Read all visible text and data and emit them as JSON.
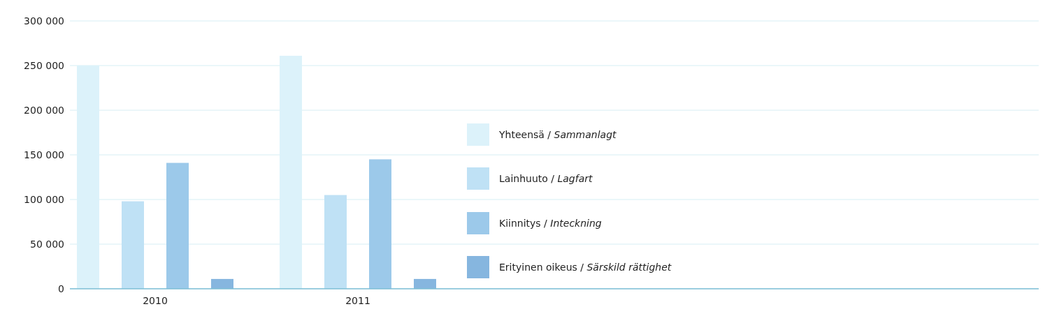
{
  "chart_data": {
    "type": "bar",
    "categories": [
      "2010",
      "2011"
    ],
    "series": [
      {
        "name": "Yhteensä / Sammanlagt",
        "color": "#dcf2fa",
        "values": [
          250000,
          261000
        ]
      },
      {
        "name": "Lainhuuto / Lagfart",
        "color": "#bfe1f5",
        "values": [
          98000,
          105000
        ]
      },
      {
        "name": "Kiinnitys / Inteckning",
        "color": "#9cc9ea",
        "values": [
          141000,
          145000
        ]
      },
      {
        "name": "Erityinen oikeus / Särskild rättighet",
        "color": "#86b6df",
        "values": [
          11000,
          11000
        ]
      }
    ],
    "ylim": [
      0,
      300000
    ],
    "yticks": [
      {
        "value": 0,
        "label": "0"
      },
      {
        "value": 50000,
        "label": "50 000"
      },
      {
        "value": 100000,
        "label": "100 000"
      },
      {
        "value": 150000,
        "label": "150 000"
      },
      {
        "value": 200000,
        "label": "200 000"
      },
      {
        "value": 250000,
        "label": "250 000"
      },
      {
        "value": 300000,
        "label": "300 000"
      }
    ],
    "grid": "y",
    "legend": "right"
  }
}
